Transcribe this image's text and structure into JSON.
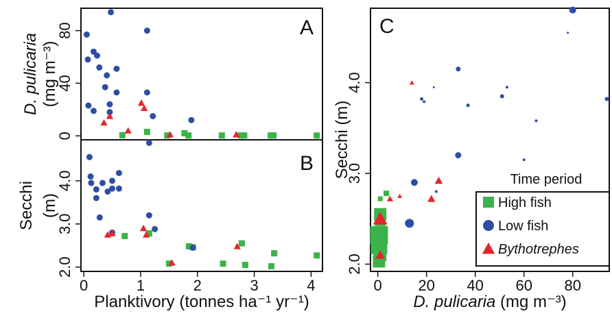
{
  "colors": {
    "high_fish": "#3cb34a",
    "low_fish": "#2e4ea6",
    "bythotrephes": "#e3262b"
  },
  "legend": {
    "title": "Time period",
    "items": [
      {
        "key": "high_fish",
        "label": "High fish",
        "marker": "square",
        "italic": false
      },
      {
        "key": "low_fish",
        "label": "Low fish",
        "marker": "circle",
        "italic": false
      },
      {
        "key": "bythotrephes",
        "label": "Bythotrephes",
        "marker": "triangle",
        "italic": true
      }
    ]
  },
  "chart_data": [
    {
      "panel": "A",
      "type": "scatter",
      "ylabel_italic": "D. pulicaria",
      "ylabel_units": "(mg m⁻³)",
      "xlim": [
        0,
        4.2
      ],
      "ylim": [
        -3,
        97
      ],
      "yticks": [
        0,
        40,
        80
      ],
      "ytick_labels": [
        "0",
        "40",
        "80"
      ],
      "series": [
        {
          "name": "Low fish",
          "key": "low_fish",
          "points": [
            [
              0.1,
              77
            ],
            [
              0.12,
              58
            ],
            [
              0.22,
              64
            ],
            [
              0.28,
              61
            ],
            [
              0.32,
              52
            ],
            [
              0.52,
              94
            ],
            [
              0.62,
              51
            ],
            [
              0.45,
              46
            ],
            [
              1.15,
              80
            ],
            [
              0.42,
              37
            ],
            [
              0.62,
              33
            ],
            [
              1.15,
              33
            ],
            [
              0.13,
              23
            ],
            [
              0.22,
              19
            ],
            [
              0.5,
              24
            ],
            [
              0.5,
              18
            ],
            [
              1.25,
              15
            ],
            [
              1.92,
              12
            ]
          ]
        },
        {
          "name": "Bythotrephes",
          "key": "bythotrephes",
          "points": [
            [
              1.05,
              25
            ],
            [
              1.1,
              21
            ],
            [
              0.5,
              15
            ],
            [
              0.4,
              10
            ],
            [
              0.82,
              4
            ],
            [
              1.55,
              1
            ],
            [
              2.7,
              1
            ]
          ]
        },
        {
          "name": "High fish",
          "key": "high_fish",
          "points": [
            [
              0.72,
              0.5
            ],
            [
              1.15,
              3
            ],
            [
              1.5,
              0.3
            ],
            [
              1.8,
              2
            ],
            [
              1.87,
              0.3
            ],
            [
              2.45,
              0.3
            ],
            [
              2.78,
              0.3
            ],
            [
              2.84,
              0.3
            ],
            [
              3.3,
              0.3
            ],
            [
              3.35,
              0.3
            ],
            [
              4.1,
              0.3
            ]
          ]
        }
      ]
    },
    {
      "panel": "B",
      "type": "scatter",
      "ylabel": "Secchi",
      "ylabel_units": "(m)",
      "xlabel": "Planktivory (tonnes ha⁻¹ yr⁻¹)",
      "xlim": [
        -0.05,
        4.2
      ],
      "ylim": [
        1.9,
        4.95
      ],
      "xticks": [
        0,
        1,
        2,
        3,
        4
      ],
      "xtick_labels": [
        "0",
        "1",
        "2",
        "3",
        "4"
      ],
      "yticks": [
        2.0,
        3.0,
        4.0
      ],
      "ytick_labels": [
        "2.0",
        "3.0",
        "4.0"
      ],
      "series": [
        {
          "name": "Low fish",
          "key": "low_fish",
          "points": [
            [
              0.1,
              4.55
            ],
            [
              1.15,
              4.88
            ],
            [
              0.12,
              4.1
            ],
            [
              0.62,
              4.18
            ],
            [
              0.13,
              3.95
            ],
            [
              0.5,
              4.0
            ],
            [
              0.33,
              3.95
            ],
            [
              0.22,
              3.8
            ],
            [
              0.42,
              3.75
            ],
            [
              0.5,
              3.82
            ],
            [
              0.62,
              3.82
            ],
            [
              0.22,
              3.6
            ],
            [
              1.15,
              3.2
            ],
            [
              0.28,
              3.15
            ],
            [
              1.25,
              2.88
            ],
            [
              0.5,
              2.8
            ],
            [
              1.92,
              2.45
            ]
          ]
        },
        {
          "name": "Bythotrephes",
          "key": "bythotrephes",
          "points": [
            [
              1.05,
              2.9
            ],
            [
              1.1,
              2.75
            ],
            [
              0.42,
              2.75
            ],
            [
              0.5,
              2.78
            ],
            [
              1.55,
              2.1
            ],
            [
              2.7,
              2.48
            ]
          ]
        },
        {
          "name": "High fish",
          "key": "high_fish",
          "points": [
            [
              0.72,
              2.72
            ],
            [
              1.15,
              2.78
            ],
            [
              1.85,
              2.48
            ],
            [
              1.92,
              2.46
            ],
            [
              2.78,
              2.55
            ],
            [
              3.35,
              2.32
            ],
            [
              4.1,
              2.27
            ],
            [
              1.5,
              2.08
            ],
            [
              2.45,
              2.08
            ],
            [
              2.84,
              2.05
            ],
            [
              3.3,
              2.02
            ]
          ]
        }
      ]
    },
    {
      "panel": "C",
      "type": "scatter",
      "note": "marker size varies by point",
      "ylabel": "Secchi (m)",
      "xlabel_italic": "D. pulicaria",
      "xlabel_units": " (mg m⁻³)",
      "xlim": [
        -3,
        95
      ],
      "ylim": [
        1.92,
        4.82
      ],
      "xticks": [
        0,
        20,
        40,
        60,
        80
      ],
      "xtick_labels": [
        "0",
        "20",
        "40",
        "60",
        "80"
      ],
      "yticks": [
        2.0,
        3.0,
        4.0
      ],
      "ytick_labels": [
        "2.0",
        "3.0",
        "4.0"
      ],
      "series": [
        {
          "name": "Low fish",
          "key": "low_fish",
          "points": [
            [
              80,
              4.8,
              5
            ],
            [
              78,
              4.55,
              1.5
            ],
            [
              94,
              3.82,
              3
            ],
            [
              33,
              4.15,
              3.5
            ],
            [
              53,
              3.95,
              2
            ],
            [
              51,
              3.85,
              3
            ],
            [
              23,
              3.95,
              1.5
            ],
            [
              18,
              3.82,
              2.5
            ],
            [
              19,
              3.79,
              2
            ],
            [
              37,
              3.75,
              2.5
            ],
            [
              65,
              3.58,
              2
            ],
            [
              60,
              3.15,
              2
            ],
            [
              33,
              3.2,
              4.5
            ],
            [
              15,
              2.9,
              5
            ],
            [
              24,
              2.8,
              2
            ],
            [
              13,
              2.45,
              6.5
            ]
          ]
        },
        {
          "name": "Bythotrephes",
          "key": "bythotrephes",
          "points": [
            [
              14,
              4.0,
              3
            ],
            [
              25,
              2.92,
              5
            ],
            [
              22,
              2.72,
              5
            ],
            [
              9,
              2.75,
              3
            ],
            [
              5,
              2.72,
              4
            ],
            [
              1,
              2.5,
              9
            ],
            [
              1,
              2.1,
              6
            ]
          ]
        },
        {
          "name": "High fish",
          "key": "high_fish",
          "points": [
            [
              3.5,
              2.78,
              4
            ],
            [
              1,
              2.72,
              3.5
            ],
            [
              1,
              2.55,
              9
            ],
            [
              1,
              2.48,
              8
            ],
            [
              0.5,
              2.32,
              13
            ],
            [
              0.5,
              2.27,
              12
            ],
            [
              0.5,
              2.2,
              12
            ],
            [
              1,
              2.1,
              9
            ],
            [
              0.5,
              2.03,
              9
            ],
            [
              0.5,
              2.05,
              8
            ]
          ]
        }
      ]
    }
  ]
}
